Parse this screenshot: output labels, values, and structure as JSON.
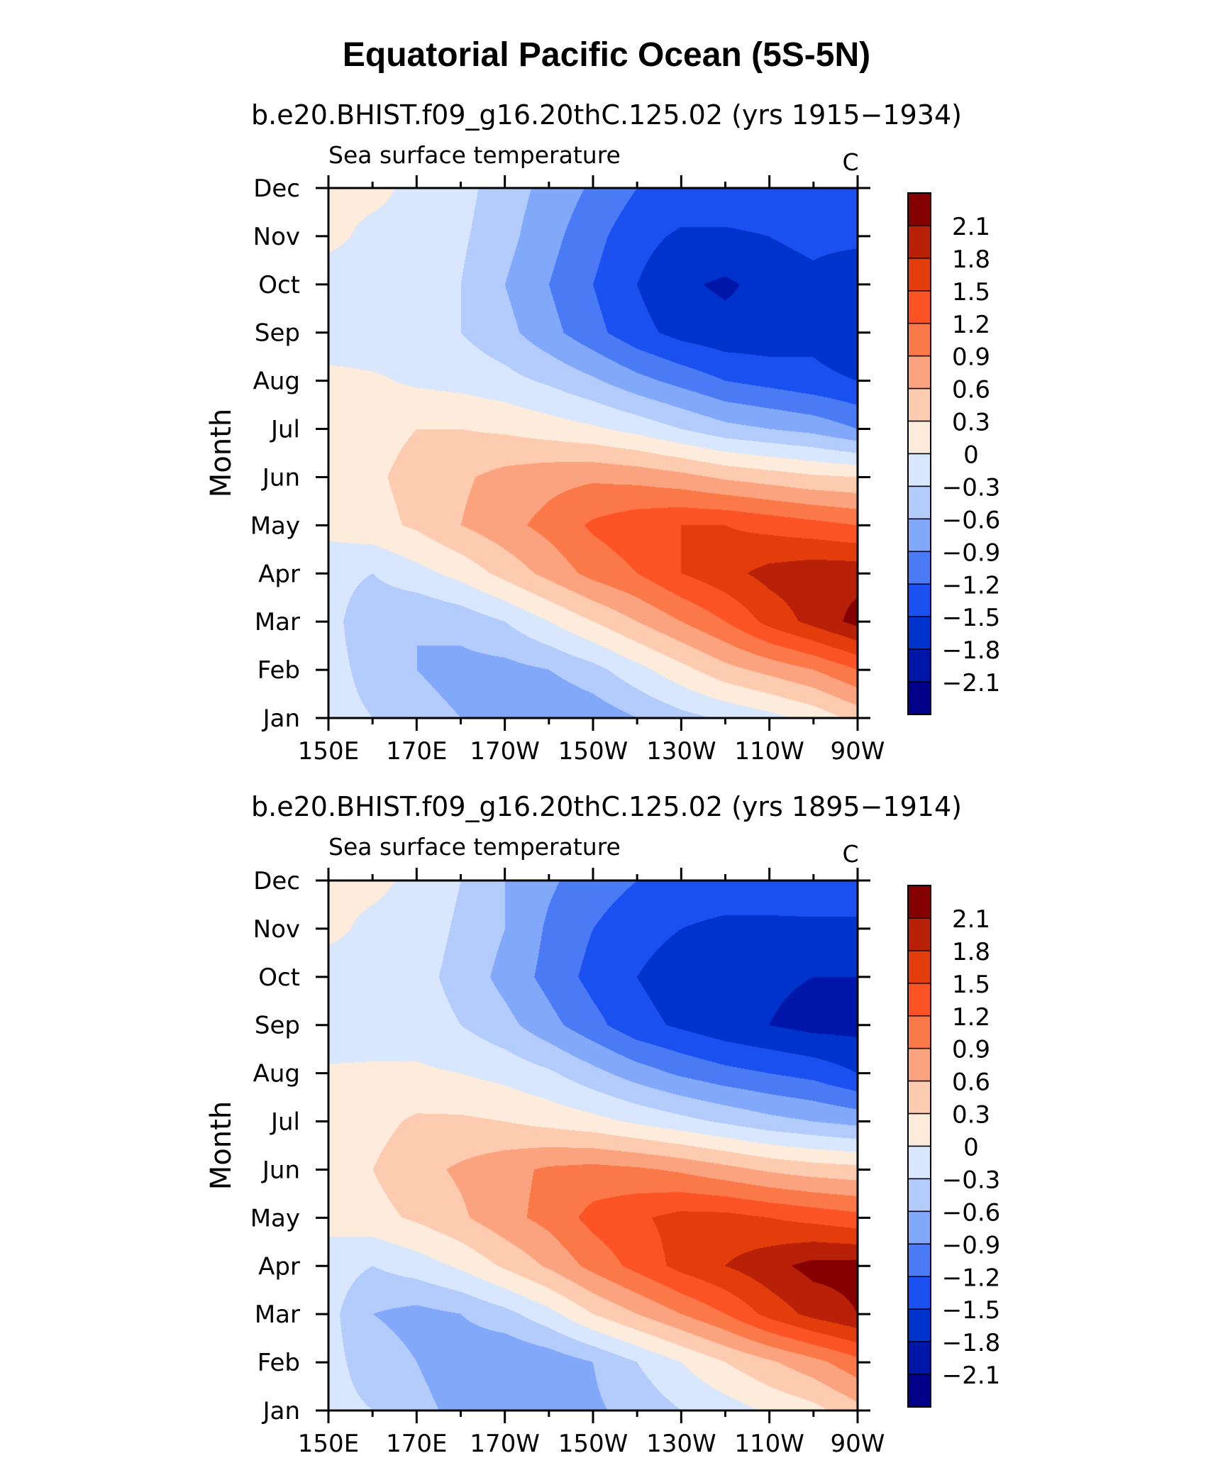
{
  "title": "Equatorial Pacific Ocean (5S-5N)",
  "chart_data": [
    {
      "type": "heatmap",
      "subtitle": "b.e20.BHIST.f09_g16.20thC.125.02 (yrs 1915−1934)",
      "variable": "Sea surface temperature",
      "units": "C",
      "xlabel": "",
      "ylabel": "Month",
      "x_range_deg": [
        150,
        270
      ],
      "x_ticks": [
        "150E",
        "170E",
        "170W",
        "150W",
        "130W",
        "110W",
        "90W"
      ],
      "y_ticks": [
        "Jan",
        "Feb",
        "Mar",
        "Apr",
        "May",
        "Jun",
        "Jul",
        "Aug",
        "Sep",
        "Oct",
        "Nov",
        "Dec"
      ],
      "x_nodes_deg": [
        150,
        160,
        170,
        180,
        190,
        200,
        210,
        220,
        230,
        240,
        250,
        260,
        270
      ],
      "values": [
        [
          -0.2,
          -0.3,
          -0.5,
          -0.6,
          -0.75,
          -0.9,
          -0.8,
          -0.6,
          -0.4,
          -0.25,
          -0.1,
          0.1,
          0.4
        ],
        [
          -0.2,
          -0.4,
          -0.6,
          -0.7,
          -0.7,
          -0.6,
          -0.4,
          -0.1,
          0.2,
          0.5,
          0.7,
          0.9,
          1.2
        ],
        [
          -0.2,
          -0.5,
          -0.6,
          -0.5,
          -0.3,
          0.0,
          0.3,
          0.6,
          0.9,
          1.2,
          1.6,
          1.9,
          2.2
        ],
        [
          -0.2,
          -0.3,
          -0.1,
          0.1,
          0.4,
          0.7,
          1.0,
          1.2,
          1.5,
          1.7,
          1.9,
          2.0,
          2.0
        ],
        [
          0.1,
          0.2,
          0.35,
          0.6,
          0.8,
          1.0,
          1.25,
          1.4,
          1.5,
          1.5,
          1.4,
          1.3,
          1.2
        ],
        [
          0.15,
          0.25,
          0.4,
          0.55,
          0.7,
          0.8,
          0.85,
          0.8,
          0.7,
          0.55,
          0.45,
          0.35,
          0.3
        ],
        [
          0.1,
          0.2,
          0.3,
          0.3,
          0.25,
          0.15,
          0.05,
          -0.1,
          -0.3,
          -0.5,
          -0.6,
          -0.7,
          -0.9
        ],
        [
          0.1,
          0.05,
          -0.05,
          -0.1,
          -0.2,
          -0.35,
          -0.55,
          -0.8,
          -1.0,
          -1.2,
          -1.3,
          -1.4,
          -1.5
        ],
        [
          -0.2,
          -0.2,
          -0.2,
          -0.3,
          -0.5,
          -0.8,
          -1.1,
          -1.4,
          -1.6,
          -1.7,
          -1.7,
          -1.6,
          -1.8
        ],
        [
          -0.2,
          -0.15,
          -0.2,
          -0.3,
          -0.6,
          -0.9,
          -1.2,
          -1.5,
          -1.75,
          -1.85,
          -1.7,
          -1.6,
          -1.8
        ],
        [
          0.1,
          -0.1,
          -0.1,
          -0.25,
          -0.5,
          -0.8,
          -1.1,
          -1.4,
          -1.55,
          -1.55,
          -1.5,
          -1.4,
          -1.4
        ],
        [
          0.1,
          0.1,
          -0.1,
          -0.2,
          -0.45,
          -0.7,
          -0.95,
          -1.2,
          -1.3,
          -1.3,
          -1.3,
          -1.2,
          -1.2
        ]
      ],
      "levels": [
        -2.1,
        -1.8,
        -1.5,
        -1.2,
        -0.9,
        -0.6,
        -0.3,
        0,
        0.3,
        0.6,
        0.9,
        1.2,
        1.5,
        1.8,
        2.1
      ],
      "level_labels": [
        "2.1",
        "1.8",
        "1.5",
        "1.2",
        "0.9",
        "0.6",
        "0.3",
        "0",
        "−0.3",
        "−0.6",
        "−0.9",
        "−1.2",
        "−1.5",
        "−1.8",
        "−2.1"
      ],
      "colors": [
        "#00008b",
        "#0016a8",
        "#0033cc",
        "#1a4ff0",
        "#4a7bf5",
        "#82a8fa",
        "#b3ccfc",
        "#d8e7fd",
        "#fdebdb",
        "#fdcbb0",
        "#fba37e",
        "#fb7848",
        "#fc5325",
        "#e23d0a",
        "#b82007",
        "#850000"
      ]
    },
    {
      "type": "heatmap",
      "subtitle": "b.e20.BHIST.f09_g16.20thC.125.02 (yrs 1895−1914)",
      "variable": "Sea surface temperature",
      "units": "C",
      "xlabel": "",
      "ylabel": "Month",
      "x_range_deg": [
        150,
        270
      ],
      "x_ticks": [
        "150E",
        "170E",
        "170W",
        "150W",
        "130W",
        "110W",
        "90W"
      ],
      "y_ticks": [
        "Jan",
        "Feb",
        "Mar",
        "Apr",
        "May",
        "Jun",
        "Jul",
        "Aug",
        "Sep",
        "Oct",
        "Nov",
        "Dec"
      ],
      "x_nodes_deg": [
        150,
        160,
        170,
        180,
        190,
        200,
        210,
        220,
        230,
        240,
        250,
        260,
        270
      ],
      "values": [
        [
          -0.2,
          -0.3,
          -0.5,
          -0.7,
          -0.8,
          -0.75,
          -0.65,
          -0.5,
          -0.3,
          -0.15,
          0.05,
          0.2,
          0.5
        ],
        [
          -0.2,
          -0.45,
          -0.6,
          -0.8,
          -0.9,
          -0.8,
          -0.6,
          -0.3,
          0.0,
          0.3,
          0.55,
          0.8,
          1.1
        ],
        [
          -0.2,
          -0.6,
          -0.7,
          -0.6,
          -0.4,
          -0.1,
          0.3,
          0.6,
          0.9,
          1.2,
          1.6,
          1.9,
          2.1
        ],
        [
          -0.15,
          -0.3,
          -0.15,
          0.05,
          0.35,
          0.65,
          1.0,
          1.3,
          1.6,
          1.8,
          2.0,
          2.2,
          2.2
        ],
        [
          0.1,
          0.2,
          0.35,
          0.55,
          0.8,
          1.0,
          1.3,
          1.45,
          1.6,
          1.6,
          1.5,
          1.4,
          1.3
        ],
        [
          0.15,
          0.3,
          0.5,
          0.65,
          0.8,
          0.95,
          1.0,
          0.95,
          0.85,
          0.7,
          0.55,
          0.45,
          0.4
        ],
        [
          0.1,
          0.2,
          0.35,
          0.35,
          0.3,
          0.2,
          0.1,
          -0.05,
          -0.2,
          -0.35,
          -0.5,
          -0.6,
          -0.7
        ],
        [
          0.05,
          0.05,
          0.05,
          0.0,
          -0.1,
          -0.25,
          -0.5,
          -0.75,
          -0.95,
          -1.1,
          -1.2,
          -1.3,
          -1.5
        ],
        [
          -0.2,
          -0.15,
          -0.15,
          -0.3,
          -0.5,
          -0.8,
          -1.1,
          -1.4,
          -1.55,
          -1.7,
          -1.8,
          -1.9,
          -1.9
        ],
        [
          -0.2,
          -0.15,
          -0.2,
          -0.4,
          -0.7,
          -1.0,
          -1.3,
          -1.5,
          -1.65,
          -1.75,
          -1.75,
          -1.8,
          -1.8
        ],
        [
          0.1,
          -0.1,
          -0.15,
          -0.35,
          -0.6,
          -0.95,
          -1.2,
          -1.4,
          -1.5,
          -1.6,
          -1.6,
          -1.6,
          -1.6
        ],
        [
          0.1,
          0.1,
          -0.1,
          -0.3,
          -0.6,
          -0.85,
          -1.05,
          -1.2,
          -1.25,
          -1.25,
          -1.25,
          -1.2,
          -1.2
        ]
      ],
      "levels": [
        -2.1,
        -1.8,
        -1.5,
        -1.2,
        -0.9,
        -0.6,
        -0.3,
        0,
        0.3,
        0.6,
        0.9,
        1.2,
        1.5,
        1.8,
        2.1
      ],
      "level_labels": [
        "2.1",
        "1.8",
        "1.5",
        "1.2",
        "0.9",
        "0.6",
        "0.3",
        "0",
        "−0.3",
        "−0.6",
        "−0.9",
        "−1.2",
        "−1.5",
        "−1.8",
        "−2.1"
      ],
      "colors": [
        "#00008b",
        "#0016a8",
        "#0033cc",
        "#1a4ff0",
        "#4a7bf5",
        "#82a8fa",
        "#b3ccfc",
        "#d8e7fd",
        "#fdebdb",
        "#fdcbb0",
        "#fba37e",
        "#fb7848",
        "#fc5325",
        "#e23d0a",
        "#b82007",
        "#850000"
      ]
    }
  ]
}
